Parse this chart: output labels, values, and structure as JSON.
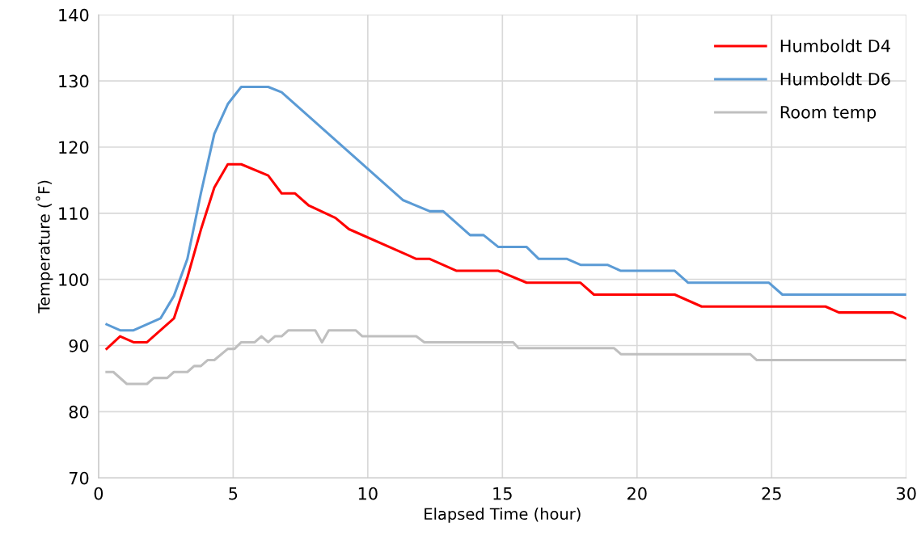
{
  "chart_data": {
    "type": "line",
    "xlabel": "Elapsed Time (hour)",
    "ylabel": "Temperature (˚F)",
    "xlim": [
      0,
      30
    ],
    "xticks": [
      0,
      5,
      10,
      15,
      20,
      25,
      30
    ],
    "ylim": [
      70,
      140
    ],
    "yticks": [
      70,
      80,
      90,
      100,
      110,
      120,
      130,
      140
    ],
    "grid": true,
    "legend": "top right",
    "marker": "none",
    "line_style": "solid",
    "series": [
      {
        "name": "Humboldt D4",
        "color": "#ff0000",
        "x": [
          0.3,
          0.8,
          1.3,
          1.8,
          2.8,
          3.3,
          3.8,
          4.3,
          4.8,
          5.3,
          6.3,
          6.8,
          7.3,
          7.8,
          8.8,
          9.3,
          11.8,
          12.3,
          13.3,
          14.85,
          15.9,
          17.9,
          18.4,
          21.4,
          22.4,
          27.0,
          27.5,
          29.5,
          30.0
        ],
        "values": [
          89.5,
          91.4,
          90.5,
          90.5,
          94.1,
          100.3,
          107.5,
          113.9,
          117.4,
          117.4,
          115.7,
          113.0,
          113.0,
          111.2,
          109.3,
          107.6,
          103.1,
          103.1,
          101.3,
          101.3,
          99.5,
          99.5,
          97.7,
          97.7,
          95.9,
          95.9,
          95.0,
          95.0,
          94.1
        ]
      },
      {
        "name": "Humboldt D6",
        "color": "#5b9bd5",
        "x": [
          0.3,
          0.8,
          1.3,
          2.3,
          2.8,
          3.3,
          3.8,
          4.3,
          4.8,
          5.3,
          6.3,
          6.8,
          11.3,
          12.3,
          12.8,
          13.8,
          14.3,
          14.85,
          15.9,
          16.35,
          17.4,
          17.9,
          18.9,
          19.4,
          21.4,
          21.9,
          24.9,
          25.4,
          30.0
        ],
        "values": [
          93.2,
          92.3,
          92.3,
          94.1,
          97.5,
          103.1,
          113.0,
          122.0,
          126.5,
          129.1,
          129.1,
          128.3,
          112.0,
          110.3,
          110.3,
          106.7,
          106.7,
          104.9,
          104.9,
          103.1,
          103.1,
          102.2,
          102.2,
          101.3,
          101.3,
          99.5,
          99.5,
          97.7,
          97.7
        ]
      },
      {
        "name": "Room temp",
        "color": "#bfbfbf",
        "x": [
          0.3,
          0.55,
          1.05,
          1.8,
          2.05,
          2.55,
          2.8,
          3.3,
          3.55,
          3.8,
          4.05,
          4.3,
          4.8,
          5.05,
          5.3,
          5.8,
          6.05,
          6.3,
          6.55,
          6.8,
          7.05,
          8.05,
          8.3,
          8.55,
          9.55,
          9.8,
          11.8,
          12.1,
          15.4,
          15.6,
          19.15,
          19.4,
          24.2,
          24.45,
          30.0
        ],
        "values": [
          86.0,
          86.0,
          84.2,
          84.2,
          85.1,
          85.1,
          86.0,
          86.0,
          86.9,
          86.9,
          87.8,
          87.8,
          89.5,
          89.5,
          90.5,
          90.5,
          91.4,
          90.5,
          91.4,
          91.4,
          92.3,
          92.3,
          90.5,
          92.3,
          92.3,
          91.4,
          91.4,
          90.5,
          90.5,
          89.6,
          89.6,
          88.7,
          88.7,
          87.8,
          87.8
        ]
      }
    ]
  }
}
